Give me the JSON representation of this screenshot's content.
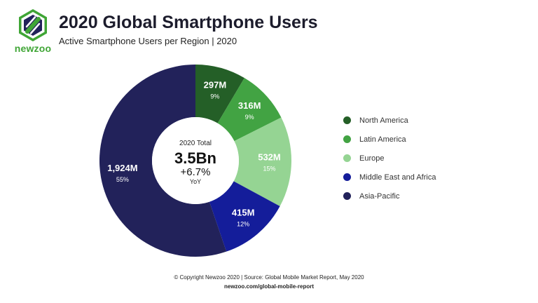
{
  "brand": {
    "name": "newzoo",
    "logo_icon": "newzoo-logo-icon"
  },
  "header": {
    "title": "2020 Global Smartphone Users",
    "subtitle": "Active Smartphone Users per Region | 2020"
  },
  "center": {
    "label": "2020 Total",
    "total": "3.5Bn",
    "growth": "+6.7%",
    "growth_label": "YoY"
  },
  "footer": {
    "copyright": "© Copyright Newzoo 2020 | Source: Global Mobile Market Report, May 2020",
    "url": "newzoo.com/global-mobile-report"
  },
  "chart_data": {
    "type": "pie",
    "donut": true,
    "start_angle_deg": 0,
    "categories": [
      "North America",
      "Latin America",
      "Europe",
      "Middle East and Africa",
      "Asia-Pacific"
    ],
    "values": [
      297,
      316,
      532,
      415,
      1924
    ],
    "value_labels": [
      "297M",
      "316M",
      "532M",
      "415M",
      "1,924M"
    ],
    "percent_labels": [
      "9%",
      "9%",
      "15%",
      "12%",
      "55%"
    ],
    "colors": [
      "#245f27",
      "#42a343",
      "#95d493",
      "#141d9a",
      "#22225a"
    ],
    "legend": [
      "North America",
      "Latin America",
      "Europe",
      "Middle East and Africa",
      "Asia-Pacific"
    ],
    "legend_position": "right"
  }
}
